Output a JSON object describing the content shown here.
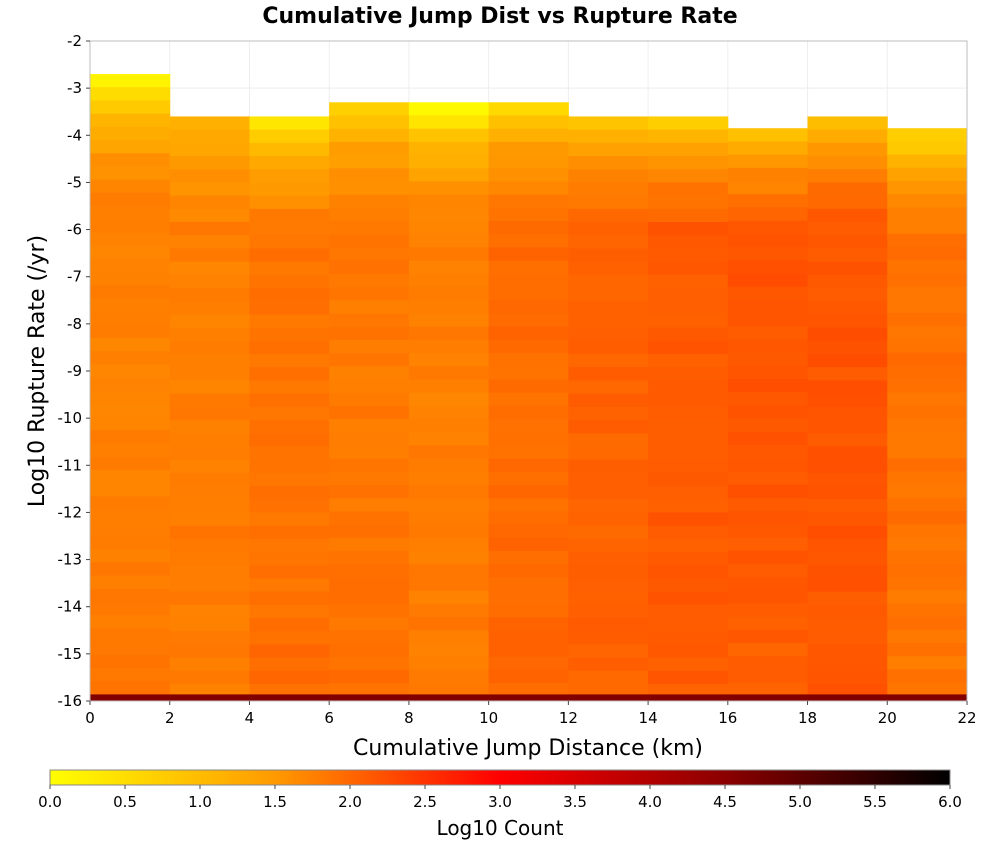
{
  "chart_data": {
    "type": "heatmap",
    "title": "Cumulative Jump Dist vs Rupture Rate",
    "xlabel": "Cumulative Jump Distance (km)",
    "ylabel": "Log10 Rupture Rate (/yr)",
    "colorbar_label": "Log10 Count",
    "xlim": [
      0,
      22
    ],
    "ylim": [
      -16,
      -2
    ],
    "x_ticks": [
      "0",
      "2",
      "4",
      "6",
      "8",
      "10",
      "12",
      "14",
      "16",
      "18",
      "20",
      "22"
    ],
    "y_ticks": [
      "-2",
      "-3",
      "-4",
      "-5",
      "-6",
      "-7",
      "-8",
      "-9",
      "-10",
      "-11",
      "-12",
      "-13",
      "-14",
      "-15",
      "-16"
    ],
    "colorbar_ticks": [
      "0.0",
      "0.5",
      "1.0",
      "1.5",
      "2.0",
      "2.5",
      "3.0",
      "3.5",
      "4.0",
      "4.5",
      "5.0",
      "5.5",
      "6.0"
    ],
    "colorbar_range": [
      0,
      6
    ],
    "colorscale": [
      "#ffff00",
      "#ff8c00",
      "#ff0000",
      "#8b0000",
      "#000000"
    ],
    "grid": true,
    "x_bin_width": 2,
    "y_bin_height": 0.28,
    "x_bin_starts": [
      0,
      2,
      4,
      6,
      8,
      10,
      12,
      14,
      16,
      18,
      20
    ],
    "bottom_row": {
      "y_range": [
        -16,
        -15.86
      ],
      "log10_count": 4.6
    },
    "columns": [
      {
        "x_start": 0,
        "y_top": -2.7,
        "top_value": 0.25,
        "mid_value": 1.6,
        "low_value": 1.75
      },
      {
        "x_start": 2,
        "y_top": -3.6,
        "top_value": 0.95,
        "mid_value": 1.65,
        "low_value": 1.7
      },
      {
        "x_start": 4,
        "y_top": -3.6,
        "top_value": 0.4,
        "mid_value": 1.75,
        "low_value": 1.85
      },
      {
        "x_start": 6,
        "y_top": -3.3,
        "top_value": 0.6,
        "mid_value": 1.7,
        "low_value": 1.8
      },
      {
        "x_start": 8,
        "y_top": -3.3,
        "top_value": 0.1,
        "mid_value": 1.65,
        "low_value": 1.7
      },
      {
        "x_start": 10,
        "y_top": -3.3,
        "top_value": 0.5,
        "mid_value": 1.85,
        "low_value": 1.9
      },
      {
        "x_start": 12,
        "y_top": -3.6,
        "top_value": 0.75,
        "mid_value": 1.95,
        "low_value": 1.95
      },
      {
        "x_start": 14,
        "y_top": -3.6,
        "top_value": 0.7,
        "mid_value": 2.05,
        "low_value": 2.0
      },
      {
        "x_start": 16,
        "y_top": -3.85,
        "top_value": 0.85,
        "mid_value": 2.1,
        "low_value": 1.95
      },
      {
        "x_start": 18,
        "y_top": -3.6,
        "top_value": 0.85,
        "mid_value": 2.1,
        "low_value": 2.05
      },
      {
        "x_start": 20,
        "y_top": -3.85,
        "top_value": 0.55,
        "mid_value": 1.8,
        "low_value": 1.7
      }
    ]
  }
}
